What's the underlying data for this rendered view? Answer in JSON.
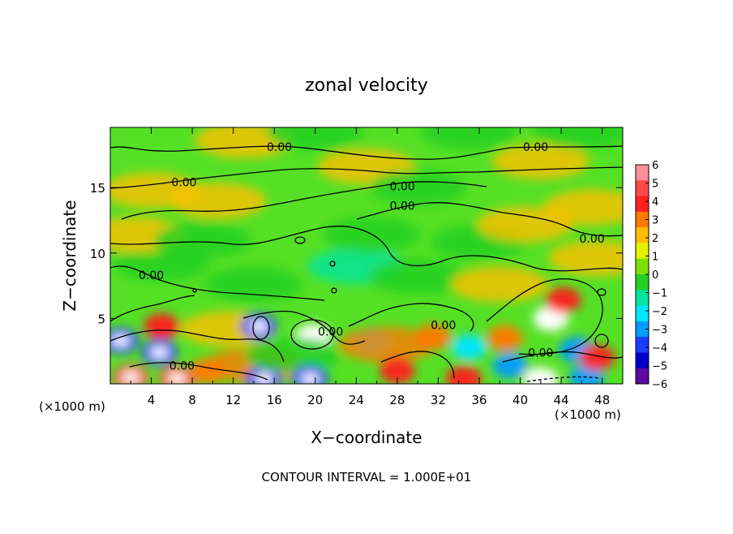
{
  "chart_data": {
    "type": "heatmap",
    "title": "zonal velocity",
    "xlabel": "X−coordinate",
    "ylabel": "Z−coordinate",
    "x_unit_left": "(×1000 m)",
    "x_unit_right": "(×1000 m)",
    "xlim": [
      0,
      50
    ],
    "ylim": [
      0,
      19.6
    ],
    "x_ticks": [
      4,
      8,
      12,
      16,
      20,
      24,
      28,
      32,
      36,
      40,
      44,
      48
    ],
    "y_ticks": [
      5,
      10,
      15
    ],
    "colorbar_ticks": [
      6,
      5,
      4,
      3,
      2,
      1,
      0,
      -1,
      -2,
      -3,
      -4,
      -5,
      -6
    ],
    "colorbar_colors": [
      "#ff8f9c",
      "#ff4a4a",
      "#ff1f1f",
      "#ff7a00",
      "#ffbf00",
      "#e8f200",
      "#7fe000",
      "#22d022",
      "#00e6a0",
      "#00e6ff",
      "#009cff",
      "#1a3cff",
      "#0000c8",
      "#5b0aa0"
    ],
    "contour_level": "0.00",
    "contour_labels": [
      {
        "text": "0.00",
        "x": 16.5,
        "z": 18.1
      },
      {
        "text": "0.00",
        "x": 41.5,
        "z": 18.1
      },
      {
        "text": "0.00",
        "x": 7.2,
        "z": 15.4
      },
      {
        "text": "0.00",
        "x": 28.5,
        "z": 15.1
      },
      {
        "text": "0.00",
        "x": 28.5,
        "z": 13.6
      },
      {
        "text": "0.00",
        "x": 47.0,
        "z": 11.1
      },
      {
        "text": "0.00",
        "x": 4.0,
        "z": 8.3
      },
      {
        "text": "0.00",
        "x": 21.5,
        "z": 4.0
      },
      {
        "text": "0.00",
        "x": 32.5,
        "z": 4.5
      },
      {
        "text": "0.00",
        "x": 42.0,
        "z": 2.4
      },
      {
        "text": "0.00",
        "x": 7.0,
        "z": 1.4
      }
    ],
    "features": [
      {
        "x": 5,
        "z": 4.4,
        "v": 3.5
      },
      {
        "x": 4.8,
        "z": 2.4,
        "v": -5.5
      },
      {
        "x": 1.0,
        "z": 3.3,
        "v": -5.5
      },
      {
        "x": 2.0,
        "z": 0.5,
        "v": 5
      },
      {
        "x": 6.5,
        "z": 0.4,
        "v": 5
      },
      {
        "x": 9.5,
        "z": 1.0,
        "v": 3
      },
      {
        "x": 11.5,
        "z": 4.2,
        "v": 1.5
      },
      {
        "x": 14.5,
        "z": 4.4,
        "v": -5.5
      },
      {
        "x": 14.0,
        "z": 1.4,
        "v": 2.5
      },
      {
        "x": 15.0,
        "z": 0.4,
        "v": -5
      },
      {
        "x": 19.8,
        "z": 3.6,
        "v": 6
      },
      {
        "x": 17.8,
        "z": 2.2,
        "v": -1
      },
      {
        "x": 19.5,
        "z": 0.4,
        "v": -5
      },
      {
        "x": 25.5,
        "z": 3.3,
        "v": -3.5
      },
      {
        "x": 27.0,
        "z": 3.0,
        "v": 2.5
      },
      {
        "x": 28.0,
        "z": 1.0,
        "v": 4
      },
      {
        "x": 31.5,
        "z": 3.6,
        "v": 3
      },
      {
        "x": 35.0,
        "z": 2.8,
        "v": -3
      },
      {
        "x": 34.5,
        "z": 0.4,
        "v": 4
      },
      {
        "x": 38.5,
        "z": 3.5,
        "v": 3
      },
      {
        "x": 39.0,
        "z": 1.4,
        "v": -4
      },
      {
        "x": 43.0,
        "z": 5.0,
        "v": 6
      },
      {
        "x": 44.2,
        "z": 6.4,
        "v": 4
      },
      {
        "x": 45.5,
        "z": 2.6,
        "v": -4
      },
      {
        "x": 46.5,
        "z": 0.5,
        "v": -4.5
      },
      {
        "x": 47.5,
        "z": 2.0,
        "v": 3.5
      },
      {
        "x": 42.0,
        "z": 0.3,
        "v": -6
      },
      {
        "x": 14.0,
        "z": 7.6,
        "v": -1.8
      },
      {
        "x": 24.0,
        "z": 9.0,
        "v": -2
      },
      {
        "x": 5.0,
        "z": 9.2,
        "v": -1.5
      },
      {
        "x": 25.5,
        "z": 11.4,
        "v": -1.5
      },
      {
        "x": 36.0,
        "z": 10.8,
        "v": -1.2
      },
      {
        "x": 30.0,
        "z": 8.2,
        "v": -1.4
      },
      {
        "x": 10.5,
        "z": 14.0,
        "v": 1.5
      },
      {
        "x": 4.0,
        "z": 14.8,
        "v": 1.2
      },
      {
        "x": 42.0,
        "z": 17.0,
        "v": 1.5
      },
      {
        "x": 25.0,
        "z": 16.6,
        "v": 1.5
      },
      {
        "x": 13.0,
        "z": 18.6,
        "v": 1.1
      },
      {
        "x": 20.0,
        "z": 19.2,
        "v": -1.1
      },
      {
        "x": 35.0,
        "z": 19.3,
        "v": -1.5
      },
      {
        "x": 46.0,
        "z": 19.3,
        "v": -1.3
      },
      {
        "x": 40.5,
        "z": 12.2,
        "v": 1.3
      },
      {
        "x": 47.5,
        "z": 9.6,
        "v": 2
      },
      {
        "x": 2.5,
        "z": 11.4,
        "v": 2
      },
      {
        "x": 38.0,
        "z": 7.6,
        "v": 2
      },
      {
        "x": 9.0,
        "z": 11.0,
        "v": -1
      },
      {
        "x": 30.0,
        "z": 15.0,
        "v": -1.2
      },
      {
        "x": 47.0,
        "z": 13.5,
        "v": 1.4
      }
    ],
    "annotation": "CONTOUR INTERVAL = 1.000E+01"
  }
}
